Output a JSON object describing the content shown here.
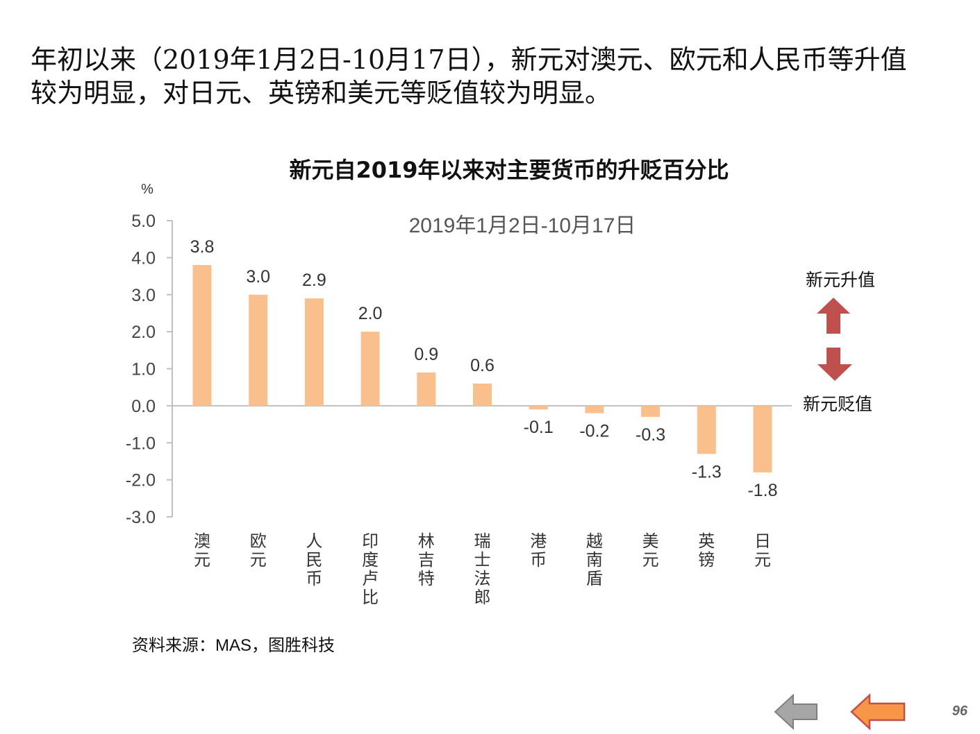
{
  "headline": {
    "line1": "年初以来（2019年1月2日-10月17日），新元对澳元、欧元和人民币等升值",
    "line2": "较为明显，对日元、英镑和美元等贬值较为明显。"
  },
  "chart_data": {
    "type": "bar",
    "title": "新元自2019年以来对主要货币的升贬百分比",
    "subtitle": "2019年1月2日-10月17日",
    "ylabel": "%",
    "ylim": [
      -3.0,
      5.0
    ],
    "yticks": [
      "5.0",
      "4.0",
      "3.0",
      "2.0",
      "1.0",
      "0.0",
      "-1.0",
      "-2.0",
      "-3.0"
    ],
    "categories": [
      "澳元",
      "欧元",
      "人民币",
      "印度卢比",
      "林吉特",
      "瑞士法郎",
      "港币",
      "越南盾",
      "美元",
      "英镑",
      "日元"
    ],
    "values": [
      3.8,
      3.0,
      2.9,
      2.0,
      0.9,
      0.6,
      -0.1,
      -0.2,
      -0.3,
      -1.3,
      -1.8
    ],
    "data_labels": [
      "3.8",
      "3.0",
      "2.9",
      "2.0",
      "0.9",
      "0.6",
      "-0.1",
      "-0.2",
      "-0.3",
      "-1.3",
      "-1.8"
    ],
    "bar_color": "#F9C08E",
    "grid": false,
    "legend_up": "新元升值",
    "legend_down": "新元贬值",
    "arrow_color": "#C0504D"
  },
  "source": "资料来源：MAS，图胜科技",
  "page_number": "96",
  "nav": {
    "back_color": "#A6A6A6",
    "forward_color": "#F79646"
  }
}
